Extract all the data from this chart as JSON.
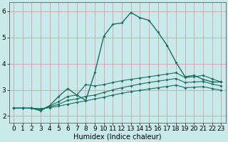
{
  "background_color": "#c8eaea",
  "plot_bg_color": "#c8eaea",
  "grid_color": "#d4a0a0",
  "line_color": "#1a6e64",
  "xlabel": "Humidex (Indice chaleur)",
  "xlabel_fontsize": 7,
  "tick_fontsize": 6.5,
  "ylim": [
    1.75,
    6.35
  ],
  "xlim": [
    -0.5,
    23.5
  ],
  "yticks": [
    2,
    3,
    4,
    5,
    6
  ],
  "xticks": [
    0,
    1,
    2,
    3,
    4,
    5,
    6,
    7,
    8,
    9,
    10,
    11,
    12,
    13,
    14,
    15,
    16,
    17,
    18,
    19,
    20,
    21,
    22,
    23
  ],
  "series": [
    {
      "x": [
        0,
        1,
        2,
        3,
        4,
        5,
        6,
        7,
        8,
        9,
        10,
        11,
        12,
        13,
        14,
        15,
        16,
        17,
        18,
        19,
        20,
        21,
        22,
        23
      ],
      "y": [
        2.3,
        2.3,
        2.3,
        2.2,
        2.4,
        2.75,
        3.05,
        2.8,
        2.6,
        3.65,
        5.05,
        5.5,
        5.55,
        5.95,
        5.75,
        5.65,
        5.2,
        4.7,
        4.05,
        3.5,
        3.55,
        3.4,
        3.3,
        3.3
      ]
    },
    {
      "x": [
        0,
        1,
        2,
        3,
        4,
        5,
        6,
        7,
        8,
        9,
        10,
        11,
        12,
        13,
        14,
        15,
        16,
        17,
        18,
        19,
        20,
        21,
        22,
        23
      ],
      "y": [
        2.3,
        2.3,
        2.3,
        2.25,
        2.38,
        2.55,
        2.75,
        2.8,
        3.2,
        3.15,
        3.2,
        3.28,
        3.35,
        3.4,
        3.45,
        3.5,
        3.55,
        3.6,
        3.65,
        3.47,
        3.5,
        3.55,
        3.42,
        3.3
      ]
    },
    {
      "x": [
        0,
        1,
        2,
        3,
        4,
        5,
        6,
        7,
        8,
        9,
        10,
        11,
        12,
        13,
        14,
        15,
        16,
        17,
        18,
        19,
        20,
        21,
        22,
        23
      ],
      "y": [
        2.3,
        2.3,
        2.3,
        2.25,
        2.35,
        2.45,
        2.6,
        2.65,
        2.75,
        2.8,
        2.9,
        3.0,
        3.08,
        3.15,
        3.22,
        3.28,
        3.33,
        3.38,
        3.43,
        3.28,
        3.3,
        3.32,
        3.22,
        3.15
      ]
    },
    {
      "x": [
        0,
        1,
        2,
        3,
        4,
        5,
        6,
        7,
        8,
        9,
        10,
        11,
        12,
        13,
        14,
        15,
        16,
        17,
        18,
        19,
        20,
        21,
        22,
        23
      ],
      "y": [
        2.3,
        2.3,
        2.3,
        2.28,
        2.32,
        2.38,
        2.45,
        2.52,
        2.58,
        2.65,
        2.72,
        2.8,
        2.87,
        2.93,
        2.98,
        3.03,
        3.08,
        3.13,
        3.18,
        3.08,
        3.1,
        3.12,
        3.05,
        2.98
      ]
    }
  ]
}
